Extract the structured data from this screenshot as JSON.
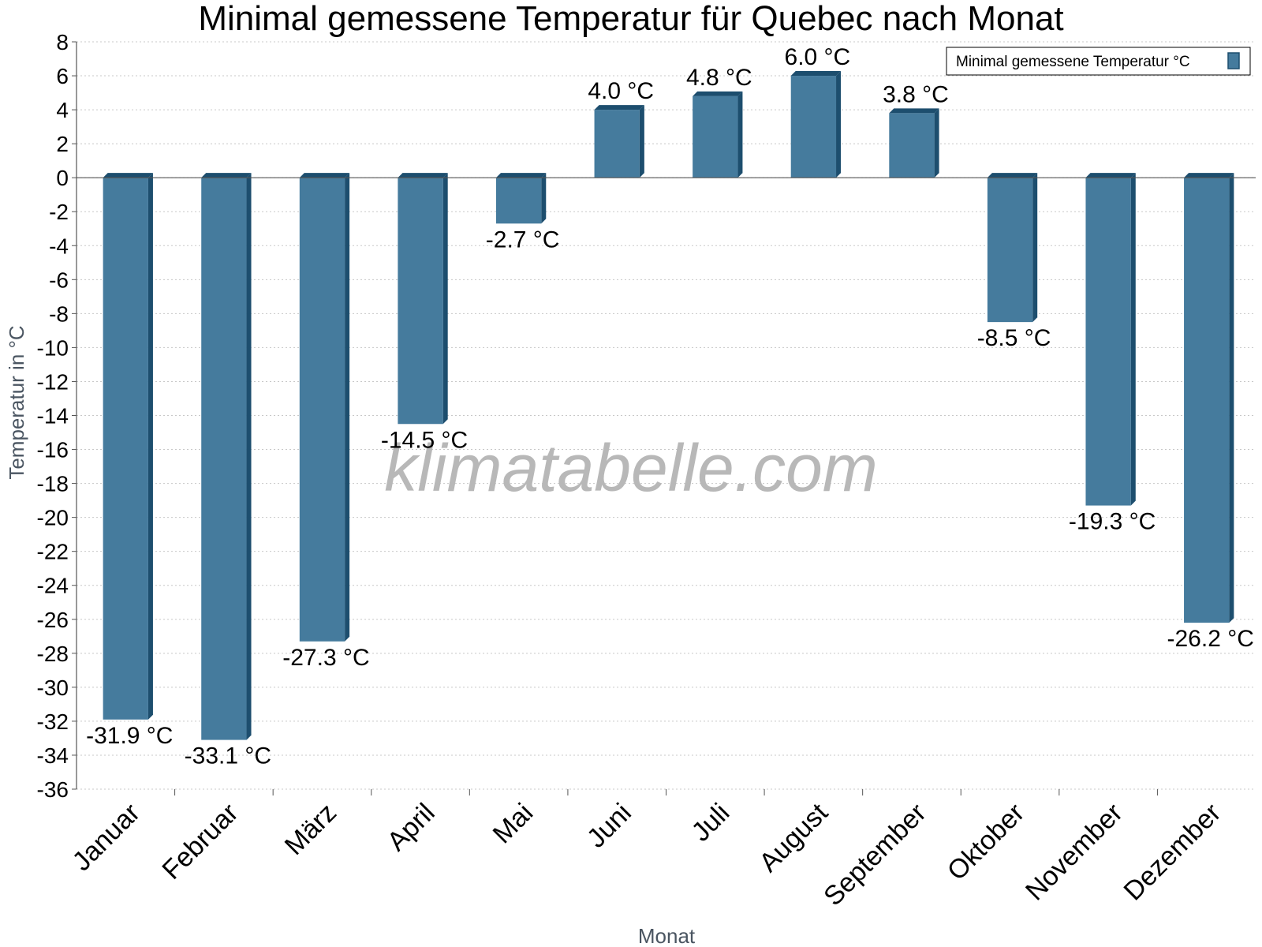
{
  "chart_data": {
    "type": "bar",
    "title": "Minimal gemessene Temperatur für Quebec nach Monat",
    "xlabel": "Monat",
    "ylabel": "Temperatur in °C",
    "ylim": [
      -36,
      8
    ],
    "ytick_step": 2,
    "grid": true,
    "legend_position": "top-right",
    "categories": [
      "Januar",
      "Februar",
      "März",
      "April",
      "Mai",
      "Juni",
      "Juli",
      "August",
      "September",
      "Oktober",
      "November",
      "Dezember"
    ],
    "series": [
      {
        "name": "Minimal gemessene Temperatur °C",
        "values": [
          -31.9,
          -33.1,
          -27.3,
          -14.5,
          -2.7,
          4.0,
          4.8,
          6.0,
          3.8,
          -8.5,
          -19.3,
          -26.2
        ],
        "value_labels": [
          "-31.9 °C",
          "-33.1 °C",
          "-27.3 °C",
          "-14.5 °C",
          "-2.7 °C",
          "4.0 °C",
          "4.8 °C",
          "6.0 °C",
          "3.8 °C",
          "-8.5 °C",
          "-19.3 °C",
          "-26.2 °C"
        ]
      }
    ],
    "watermark": "klimatabelle.com",
    "colors": {
      "bar": "#457b9d",
      "bar_side": "#1d4e6e",
      "grid": "#c8c8c8",
      "axis": "#555555"
    }
  }
}
